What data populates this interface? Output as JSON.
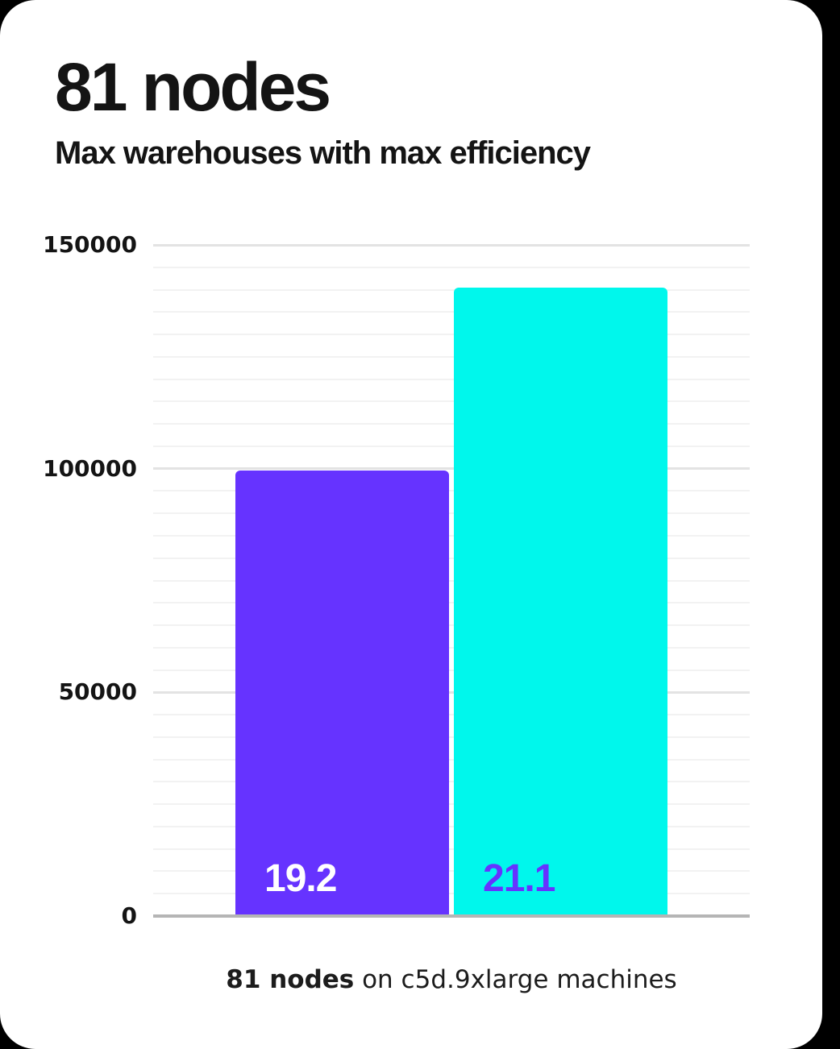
{
  "card": {
    "title": "81 nodes",
    "subtitle": "Max warehouses with max efficiency",
    "caption_bold": "81 nodes",
    "caption_rest": " on c5d.9xlarge machines"
  },
  "colors": {
    "page_background": "#000000",
    "card_background": "#ffffff",
    "heading_text": "#141414",
    "axis_label_text": "#141414",
    "caption_text": "#1c1c1c",
    "grid_minor": "#f2f2f2",
    "grid_major": "#e3e3e3",
    "axis_baseline": "#b5b5b5",
    "bar_purple": "#6633ff",
    "bar_cyan": "#00f7ec"
  },
  "chart_data": {
    "type": "bar",
    "title": "81 nodes",
    "subtitle": "Max warehouses with max efficiency",
    "caption": "81 nodes on c5d.9xlarge machines",
    "categories": [
      "19.2",
      "21.1"
    ],
    "values": [
      99500,
      140500
    ],
    "bar_labels": [
      "19.2",
      "21.1"
    ],
    "bar_colors": [
      "#6633ff",
      "#00f7ec"
    ],
    "bar_label_colors": [
      "#ffffff",
      "#6633ff"
    ],
    "ylim": [
      0,
      150000
    ],
    "yticks": [
      0,
      50000,
      100000,
      150000
    ],
    "ytick_labels": [
      "0",
      "50000",
      "100000",
      "150000"
    ],
    "grid_minor_step": 5000,
    "grid": true,
    "legend": false,
    "xlabel": "",
    "ylabel": ""
  }
}
